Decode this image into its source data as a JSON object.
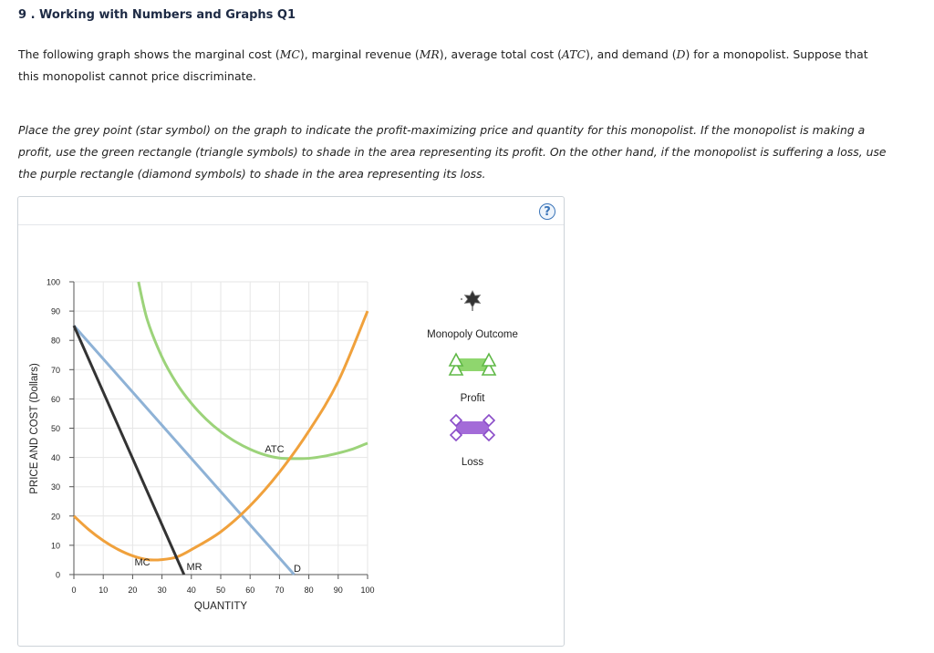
{
  "header": {
    "title": "9 . Working with Numbers and Graphs Q1"
  },
  "intro": {
    "p1": "The following graph shows the marginal cost (",
    "mc": "MC",
    "p2": "), marginal revenue (",
    "mr": "MR",
    "p3": "), average total cost (",
    "atc": "ATC",
    "p4": "), and demand (",
    "d": "D",
    "p5": ") for a monopolist. Suppose that this monopolist cannot price discriminate."
  },
  "instructions": "Place the grey point (star symbol) on the graph to indicate the profit-maximizing price and quantity for this monopolist. If the monopolist is making a profit, use the green rectangle (triangle symbols) to shade in the area representing its profit. On the other hand, if the monopolist is suffering a loss, use the purple rectangle (diamond symbols) to shade in the area representing its loss.",
  "help_icon": "?",
  "legend": {
    "monopoly_outcome": "Monopoly Outcome",
    "profit": "Profit",
    "loss": "Loss"
  },
  "colors": {
    "mc": "#f0a13c",
    "mr": "#333333",
    "demand": "#8eb2d6",
    "atc": "#9cd37a",
    "profit_fill": "#8fd66e",
    "profit_stroke": "#5fb846",
    "loss_fill": "#a36bd8",
    "loss_stroke": "#8a4cc8",
    "grid": "#e6e6e6"
  },
  "chart_data": {
    "type": "line",
    "xlabel": "QUANTITY",
    "ylabel": "PRICE AND COST (Dollars)",
    "xlim": [
      0,
      100
    ],
    "ylim": [
      0,
      100
    ],
    "x_ticks": [
      0,
      10,
      20,
      30,
      40,
      50,
      60,
      70,
      80,
      90,
      100
    ],
    "y_ticks": [
      0,
      10,
      20,
      30,
      40,
      50,
      60,
      70,
      80,
      90,
      100
    ],
    "grid": true,
    "series": [
      {
        "name": "MC",
        "label": "MC",
        "x": [
          0,
          5,
          10,
          15,
          20,
          25,
          30,
          35,
          40,
          50,
          60,
          70,
          80,
          90,
          100
        ],
        "y": [
          20,
          15.4,
          11.6,
          8.6,
          6.4,
          5.1,
          5.1,
          6.0,
          8.5,
          14.6,
          23.5,
          35.0,
          49.0,
          66.0,
          90.0
        ]
      },
      {
        "name": "MR",
        "label": "MR",
        "x": [
          0,
          37.5
        ],
        "y": [
          85,
          0
        ]
      },
      {
        "name": "D",
        "label": "D",
        "x": [
          0,
          75
        ],
        "y": [
          85,
          0
        ]
      },
      {
        "name": "ATC",
        "label": "ATC",
        "x": [
          22,
          25,
          30,
          35,
          40,
          45,
          50,
          55,
          60,
          65,
          70,
          75,
          80,
          85,
          90,
          95,
          100
        ],
        "y": [
          100,
          87.0,
          74.3,
          65.3,
          58.5,
          53.1,
          48.8,
          45.4,
          42.8,
          40.9,
          39.8,
          39.6,
          39.7,
          40.4,
          41.5,
          42.9,
          44.9
        ]
      }
    ]
  }
}
